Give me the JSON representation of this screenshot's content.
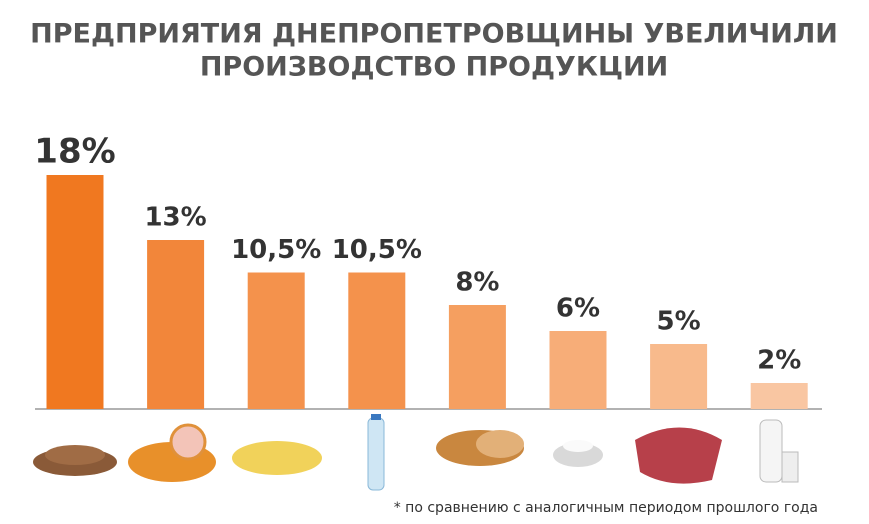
{
  "chart_data": {
    "type": "bar",
    "title": [
      "ПРЕДПРИЯТИЯ ДНЕПРОПЕТРОВЩИНЫ УВЕЛИЧИЛИ",
      "ПРОИЗВОДСТВО ПРОДУКЦИИ"
    ],
    "values": [
      18,
      13,
      10.5,
      10.5,
      8,
      6,
      5,
      2
    ],
    "value_labels": [
      "18%",
      "13%",
      "10,5%",
      "10,5%",
      "8%",
      "6%",
      "5%",
      "2%"
    ],
    "colors": [
      "#f07820",
      "#f2863a",
      "#f4924c",
      "#f4924c",
      "#f59f60",
      "#f7ad78",
      "#f8ba8c",
      "#f9c6a2"
    ],
    "footnote": "* по сравнению с аналогичным периодом прошлого года"
  }
}
